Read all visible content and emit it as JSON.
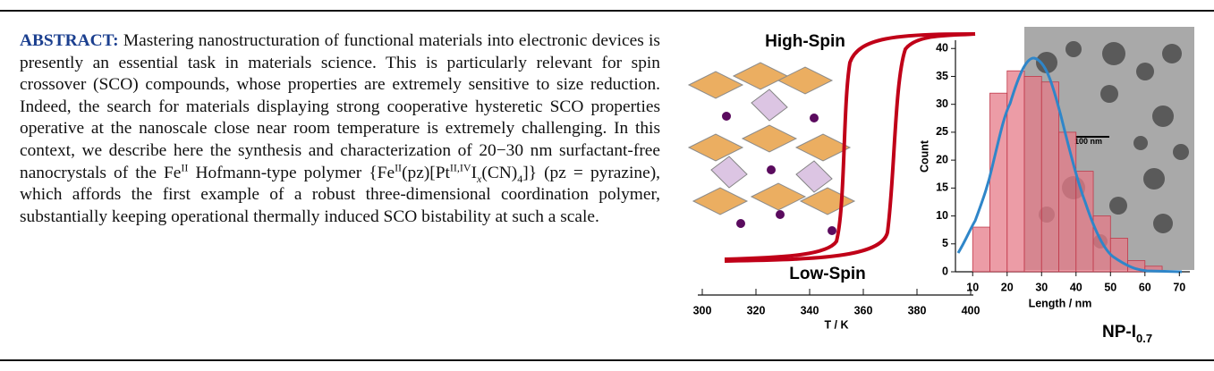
{
  "abstract": {
    "label": "ABSTRACT:",
    "parts": [
      "Mastering nanostructuration of functional materials into electronic devices is presently an essential task in materials science. This is particularly relevant for spin crossover (SCO) compounds, whose properties are extremely sensitive to size reduction. Indeed, the search for materials displaying strong cooperative hysteretic SCO properties operative at the nanoscale close near room temperature is extremely challenging. In this context, we describe here the synthesis and characterization of 20−30 nm surfactant-free nanocrystals of the Fe",
      "II",
      " Hofmann-type polymer {Fe",
      "II",
      "(pz)[Pt",
      "II,IV",
      "I",
      "x",
      "(CN)",
      "4",
      "]} (pz = pyrazine), which affords the first example of a robust three-dimensional coordination polymer, substantially keeping operational thermally induced SCO bistability at such a scale."
    ]
  },
  "figure": {
    "labels": {
      "high_spin": "High-Spin",
      "low_spin": "Low-Spin",
      "np": "NP-I",
      "np_sub": "0.7",
      "scale_bar": "100 nm"
    },
    "hysteresis": {
      "xlabel": "T / K",
      "xlim": [
        300,
        400
      ],
      "xticks": [
        300,
        320,
        340,
        360,
        380,
        400
      ]
    },
    "histogram": {
      "xlabel": "Length / nm",
      "ylabel": "Count",
      "xlim": [
        5,
        72
      ],
      "ylim": [
        0,
        41
      ],
      "xticks": [
        10,
        20,
        30,
        40,
        50,
        60,
        70
      ],
      "yticks": [
        0,
        5,
        10,
        15,
        20,
        25,
        30,
        35,
        40
      ],
      "bins": [
        10,
        15,
        20,
        25,
        30,
        35,
        40,
        45,
        50,
        55,
        60,
        65
      ],
      "counts": [
        8,
        32,
        36,
        35,
        34,
        25,
        18,
        10,
        6,
        2,
        1
      ]
    }
  }
}
